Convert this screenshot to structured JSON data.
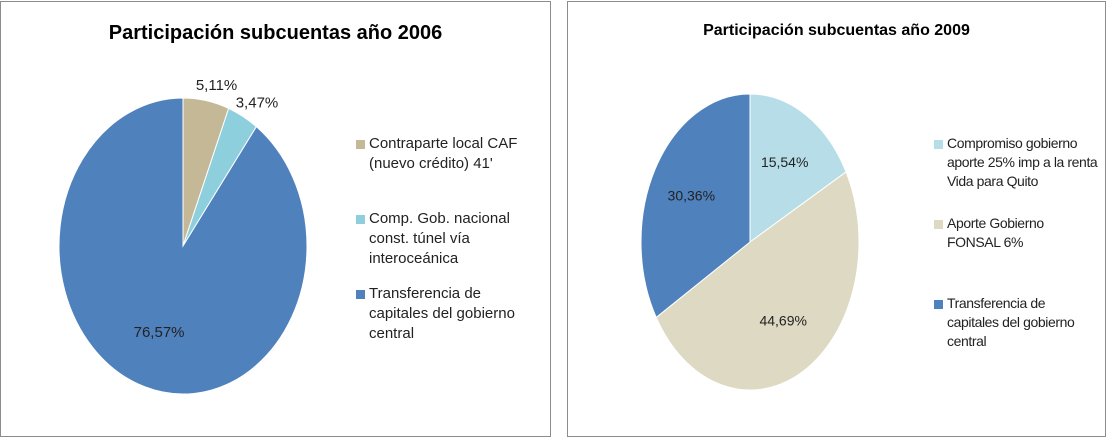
{
  "chart_data": [
    {
      "type": "pie",
      "title": "Participación subcuentas año 2006",
      "categories": [
        "Contraparte local CAF (nuevo crédito) 41'",
        "Comp. Gob. nacional const. túnel vía interoceánica",
        "Transferencia de capitales del gobierno central"
      ],
      "values": [
        5.11,
        3.47,
        76.57
      ],
      "value_labels": [
        "5,11%",
        "3,47%",
        "76,57%"
      ],
      "colors": [
        "#c4b896",
        "#8ecfdd",
        "#4f81bd"
      ]
    },
    {
      "type": "pie",
      "title": "Participación subcuentas año 2009",
      "categories": [
        "Compromiso gobierno aporte 25% imp a la renta Vida para Quito",
        "Aporte Gobierno FONSAL 6%",
        "Transferencia de capitales del gobierno central"
      ],
      "values": [
        15.54,
        44.69,
        30.36
      ],
      "value_labels": [
        "15,54%",
        "44,69%",
        "30,36%"
      ],
      "colors": [
        "#b7dde8",
        "#ddd9c3",
        "#4f81bd"
      ]
    }
  ]
}
